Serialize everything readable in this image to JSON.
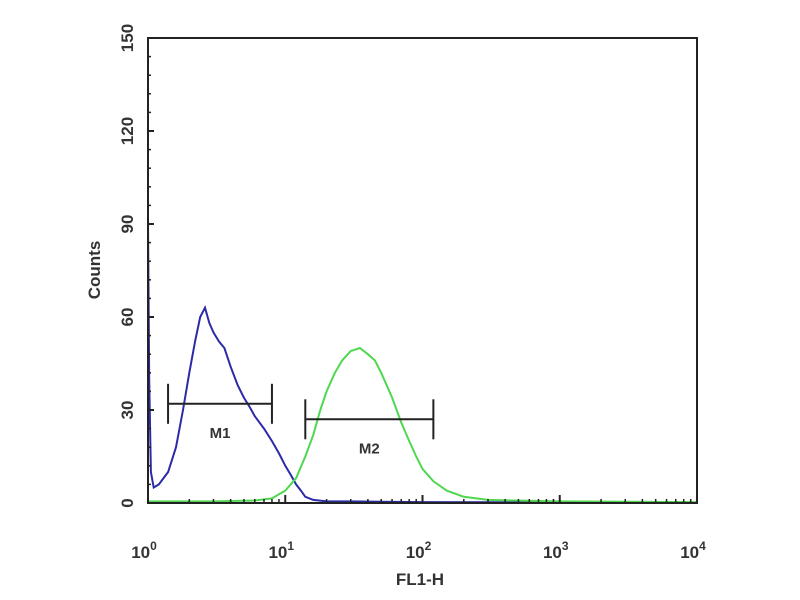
{
  "chart_data": {
    "type": "line",
    "title": "",
    "xlabel": "FL1-H",
    "ylabel": "Counts",
    "xscale": "log",
    "xlim": [
      1,
      10000
    ],
    "ylim": [
      0,
      150
    ],
    "grid": false,
    "y_ticks": [
      "0",
      "30",
      "60",
      "90",
      "120",
      "150"
    ],
    "x_ticks": [
      {
        "value": 1,
        "base": "10",
        "exp": "0"
      },
      {
        "value": 10,
        "base": "10",
        "exp": "1"
      },
      {
        "value": 100,
        "base": "10",
        "exp": "2"
      },
      {
        "value": 1000,
        "base": "10",
        "exp": "3"
      },
      {
        "value": 10000,
        "base": "10",
        "exp": "4"
      }
    ],
    "series": [
      {
        "color": "#2b2ba8",
        "points": [
          [
            1,
            90
          ],
          [
            1.02,
            40
          ],
          [
            1.05,
            10
          ],
          [
            1.1,
            5
          ],
          [
            1.2,
            6
          ],
          [
            1.4,
            10
          ],
          [
            1.6,
            18
          ],
          [
            1.8,
            30
          ],
          [
            2.0,
            42
          ],
          [
            2.2,
            52
          ],
          [
            2.4,
            60
          ],
          [
            2.6,
            63
          ],
          [
            2.8,
            58
          ],
          [
            3.0,
            55
          ],
          [
            3.3,
            52
          ],
          [
            3.6,
            50
          ],
          [
            4,
            44
          ],
          [
            4.5,
            38
          ],
          [
            5,
            34
          ],
          [
            5.5,
            31
          ],
          [
            6,
            28
          ],
          [
            7,
            24
          ],
          [
            8,
            20
          ],
          [
            9,
            16
          ],
          [
            10,
            12
          ],
          [
            11,
            9
          ],
          [
            12,
            6
          ],
          [
            13,
            4
          ],
          [
            14,
            2
          ],
          [
            16,
            1
          ],
          [
            20,
            0.5
          ],
          [
            30,
            0.5
          ],
          [
            100,
            0.3
          ],
          [
            1000,
            0.2
          ],
          [
            10000,
            0
          ]
        ]
      },
      {
        "color": "#4fd84f",
        "points": [
          [
            1,
            0.5
          ],
          [
            3,
            0.5
          ],
          [
            6,
            0.8
          ],
          [
            8,
            1.5
          ],
          [
            10,
            4
          ],
          [
            12,
            8
          ],
          [
            14,
            15
          ],
          [
            16,
            22
          ],
          [
            18,
            30
          ],
          [
            20,
            36
          ],
          [
            23,
            42
          ],
          [
            26,
            46
          ],
          [
            30,
            49
          ],
          [
            35,
            50
          ],
          [
            40,
            48
          ],
          [
            45,
            46
          ],
          [
            50,
            42
          ],
          [
            60,
            34
          ],
          [
            70,
            26
          ],
          [
            80,
            20
          ],
          [
            90,
            15
          ],
          [
            100,
            11
          ],
          [
            120,
            7
          ],
          [
            150,
            4
          ],
          [
            200,
            2
          ],
          [
            300,
            1
          ],
          [
            1000,
            0.5
          ],
          [
            10000,
            0.3
          ]
        ]
      }
    ],
    "markers": [
      {
        "label": "M1",
        "x_start": 1.4,
        "x_end": 8,
        "y": 32
      },
      {
        "label": "M2",
        "x_start": 14,
        "x_end": 120,
        "y": 27
      }
    ]
  }
}
